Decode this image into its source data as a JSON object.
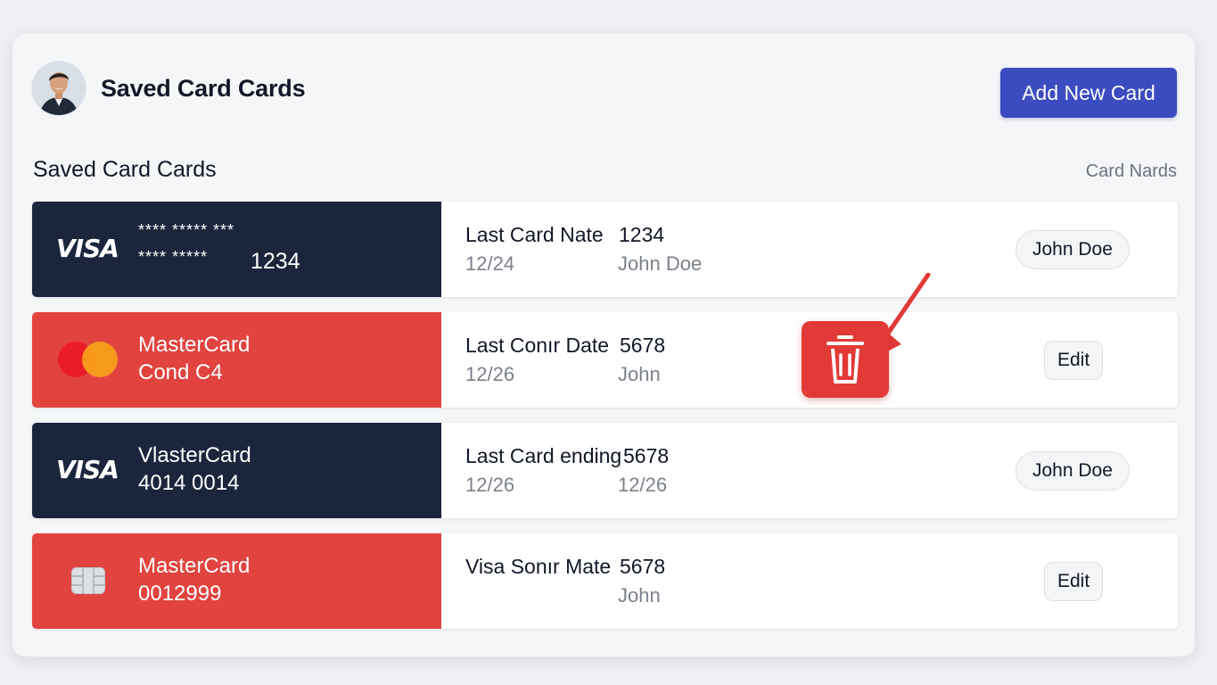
{
  "header": {
    "title": "Saved Card Cards",
    "add_button_label": "Add New Card"
  },
  "section": {
    "title": "Saved Card Cards",
    "meta": "Card Nards"
  },
  "cards": [
    {
      "brand": "VISA",
      "masked_line1": "**** ***** ***",
      "masked_line2": "**** *****",
      "last_digits": "1234",
      "info_label": "Last Card Nate",
      "info_number": "1234",
      "info_date": "12/24",
      "info_name": "John Doe",
      "action_label": "John Doe"
    },
    {
      "brand_name": "MasterCard",
      "sub_line": "Cond C4",
      "info_label": "Last Conır Date",
      "info_number": "5678",
      "info_date": "12/26",
      "info_name": "John",
      "action_label": "Edit"
    },
    {
      "brand": "VISA",
      "brand_name": "VlasterCard",
      "sub_line": "4014 0014",
      "info_label": "Last Card ending",
      "info_number": "5678",
      "info_date": "12/26",
      "info_name": "12/26",
      "action_label": "John Doe"
    },
    {
      "brand_name": "MasterCard",
      "sub_line": "0012999",
      "info_label": "Visa Sonır Mate",
      "info_number": "5678",
      "info_name": "John",
      "action_label": "Edit"
    }
  ],
  "icons": {
    "delete": "trash-icon",
    "pointer": "arrow-pointer-icon",
    "chip": "card-chip-icon",
    "mastercard": "mastercard-logo-icon",
    "avatar": "user-avatar"
  },
  "colors": {
    "primary": "#3b4bc0",
    "card_navy": "#1b263d",
    "card_red": "#e1433f",
    "danger": "#e23a37",
    "page_bg": "#eef0f3"
  }
}
